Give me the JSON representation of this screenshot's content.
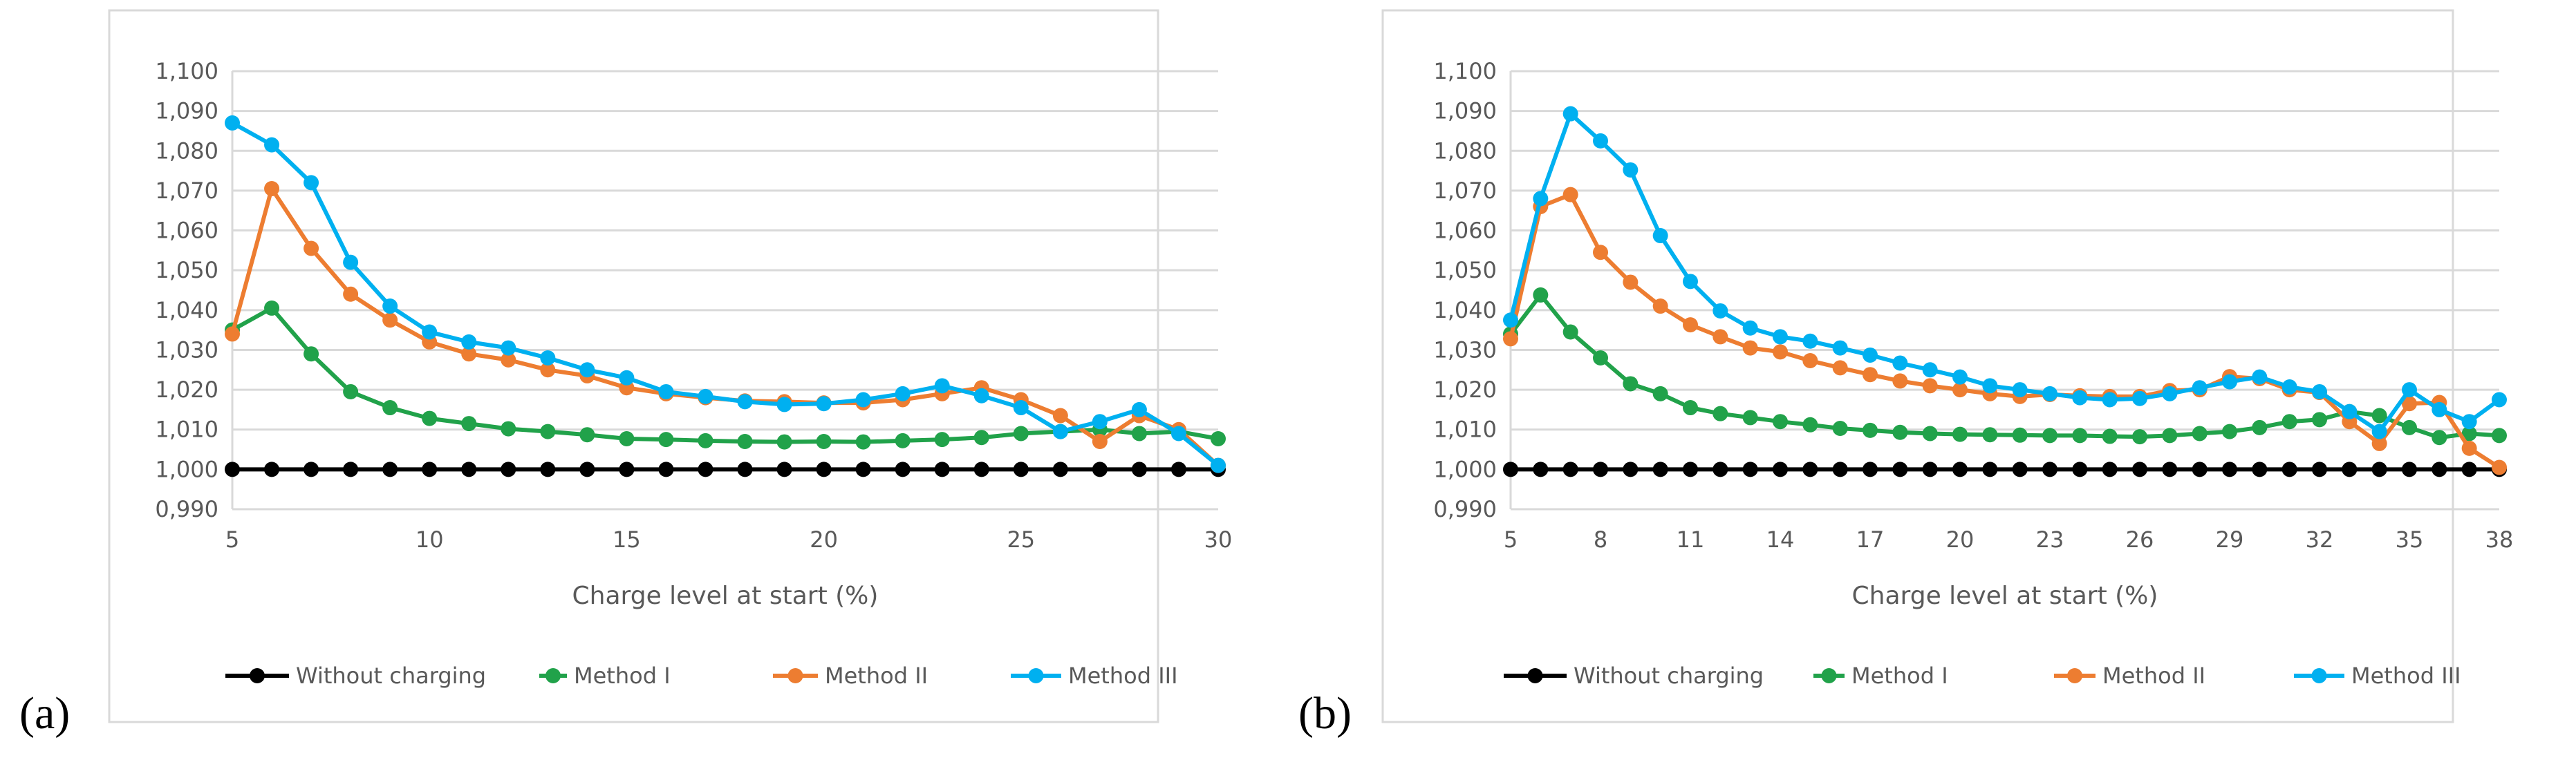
{
  "panels": [
    {
      "label": "(a)"
    },
    {
      "label": "(b)"
    }
  ],
  "chart_data": [
    {
      "type": "line",
      "xlabel": "Charge level at start (%)",
      "ylabel": "",
      "ylim": [
        0.99,
        1.1
      ],
      "yticks": [
        "0,990",
        "1,000",
        "1,010",
        "1,020",
        "1,030",
        "1,040",
        "1,050",
        "1,060",
        "1,070",
        "1,080",
        "1,090",
        "1,100"
      ],
      "xlim": [
        5,
        30
      ],
      "xticks": [
        "5",
        "10",
        "15",
        "20",
        "25",
        "30"
      ],
      "grid": true,
      "legend_position": "bottom",
      "x": [
        5,
        6,
        7,
        8,
        9,
        10,
        11,
        12,
        13,
        14,
        15,
        16,
        17,
        18,
        19,
        20,
        21,
        22,
        23,
        24,
        25,
        26,
        27,
        28,
        29,
        30
      ],
      "series": [
        {
          "name": "Without charging",
          "color": "#000000",
          "values": [
            1,
            1,
            1,
            1,
            1,
            1,
            1,
            1,
            1,
            1,
            1,
            1,
            1,
            1,
            1,
            1,
            1,
            1,
            1,
            1,
            1,
            1,
            1,
            1,
            1,
            1
          ]
        },
        {
          "name": "Method I",
          "color": "#21a24a",
          "values": [
            1.035,
            1.0405,
            1.029,
            1.0195,
            1.0155,
            1.0128,
            1.0115,
            1.0102,
            1.0095,
            1.0087,
            1.0077,
            1.0075,
            1.0072,
            1.007,
            1.0069,
            1.007,
            1.0069,
            1.0072,
            1.0075,
            1.008,
            1.009,
            1.0095,
            1.01,
            1.009,
            1.0095,
            1.0077
          ]
        },
        {
          "name": "Method II",
          "color": "#ed7d31",
          "values": [
            1.034,
            1.0705,
            1.0555,
            1.044,
            1.0375,
            1.032,
            1.029,
            1.0275,
            1.025,
            1.0235,
            1.0205,
            1.019,
            1.018,
            1.0172,
            1.017,
            1.0167,
            1.0167,
            1.0175,
            1.019,
            1.0205,
            1.0175,
            1.0135,
            1.007,
            1.0135,
            1.01,
            1.001
          ]
        },
        {
          "name": "Method III",
          "color": "#00b0f0",
          "values": [
            1.087,
            1.0815,
            1.072,
            1.052,
            1.041,
            1.0345,
            1.032,
            1.0305,
            1.028,
            1.025,
            1.023,
            1.0195,
            1.0183,
            1.017,
            1.0163,
            1.0165,
            1.0175,
            1.019,
            1.021,
            1.0185,
            1.0155,
            1.0095,
            1.012,
            1.015,
            1.009,
            1.001
          ]
        }
      ]
    },
    {
      "type": "line",
      "xlabel": "Charge level at start (%)",
      "ylabel": "",
      "ylim": [
        0.99,
        1.1
      ],
      "yticks": [
        "0,990",
        "1,000",
        "1,010",
        "1,020",
        "1,030",
        "1,040",
        "1,050",
        "1,060",
        "1,070",
        "1,080",
        "1,090",
        "1,100"
      ],
      "xlim": [
        5,
        38
      ],
      "xticks": [
        "5",
        "8",
        "11",
        "14",
        "17",
        "20",
        "23",
        "26",
        "29",
        "32",
        "35",
        "38"
      ],
      "grid": true,
      "legend_position": "bottom",
      "x": [
        5,
        6,
        7,
        8,
        9,
        10,
        11,
        12,
        13,
        14,
        15,
        16,
        17,
        18,
        19,
        20,
        21,
        22,
        23,
        24,
        25,
        26,
        27,
        28,
        29,
        30,
        31,
        32,
        33,
        34,
        35,
        36,
        37,
        38
      ],
      "series": [
        {
          "name": "Without charging",
          "color": "#000000",
          "values": [
            1,
            1,
            1,
            1,
            1,
            1,
            1,
            1,
            1,
            1,
            1,
            1,
            1,
            1,
            1,
            1,
            1,
            1,
            1,
            1,
            1,
            1,
            1,
            1,
            1,
            1,
            1,
            1,
            1,
            1,
            1,
            1,
            1,
            1
          ]
        },
        {
          "name": "Method I",
          "color": "#21a24a",
          "values": [
            1.034,
            1.0438,
            1.0345,
            1.028,
            1.0215,
            1.019,
            1.0155,
            1.014,
            1.013,
            1.012,
            1.0112,
            1.0103,
            1.0098,
            1.0093,
            1.009,
            1.0088,
            1.0087,
            1.0086,
            1.0085,
            1.0085,
            1.0083,
            1.0082,
            1.0085,
            1.009,
            1.0095,
            1.0105,
            1.012,
            1.0125,
            1.0145,
            1.0135,
            1.0105,
            1.008,
            1.009,
            1.0085
          ]
        },
        {
          "name": "Method II",
          "color": "#ed7d31",
          "values": [
            1.0328,
            1.066,
            1.069,
            1.0545,
            1.047,
            1.041,
            1.0363,
            1.0333,
            1.0305,
            1.0295,
            1.0273,
            1.0255,
            1.0238,
            1.0222,
            1.021,
            1.02,
            1.019,
            1.0183,
            1.0188,
            1.0185,
            1.0183,
            1.0183,
            1.0198,
            1.02,
            1.0233,
            1.0228,
            1.02,
            1.0193,
            1.012,
            1.0065,
            1.0165,
            1.0168,
            1.0053,
            1.0005
          ]
        },
        {
          "name": "Method III",
          "color": "#00b0f0",
          "values": [
            1.0375,
            1.068,
            1.0893,
            1.0825,
            1.0752,
            1.0587,
            1.0472,
            1.0398,
            1.0355,
            1.0333,
            1.0322,
            1.0305,
            1.0287,
            1.0267,
            1.025,
            1.0232,
            1.021,
            1.02,
            1.019,
            1.018,
            1.0175,
            1.0178,
            1.019,
            1.0205,
            1.022,
            1.0232,
            1.0207,
            1.0195,
            1.0145,
            1.0095,
            1.02,
            1.015,
            1.012,
            1.0175
          ]
        }
      ]
    }
  ]
}
